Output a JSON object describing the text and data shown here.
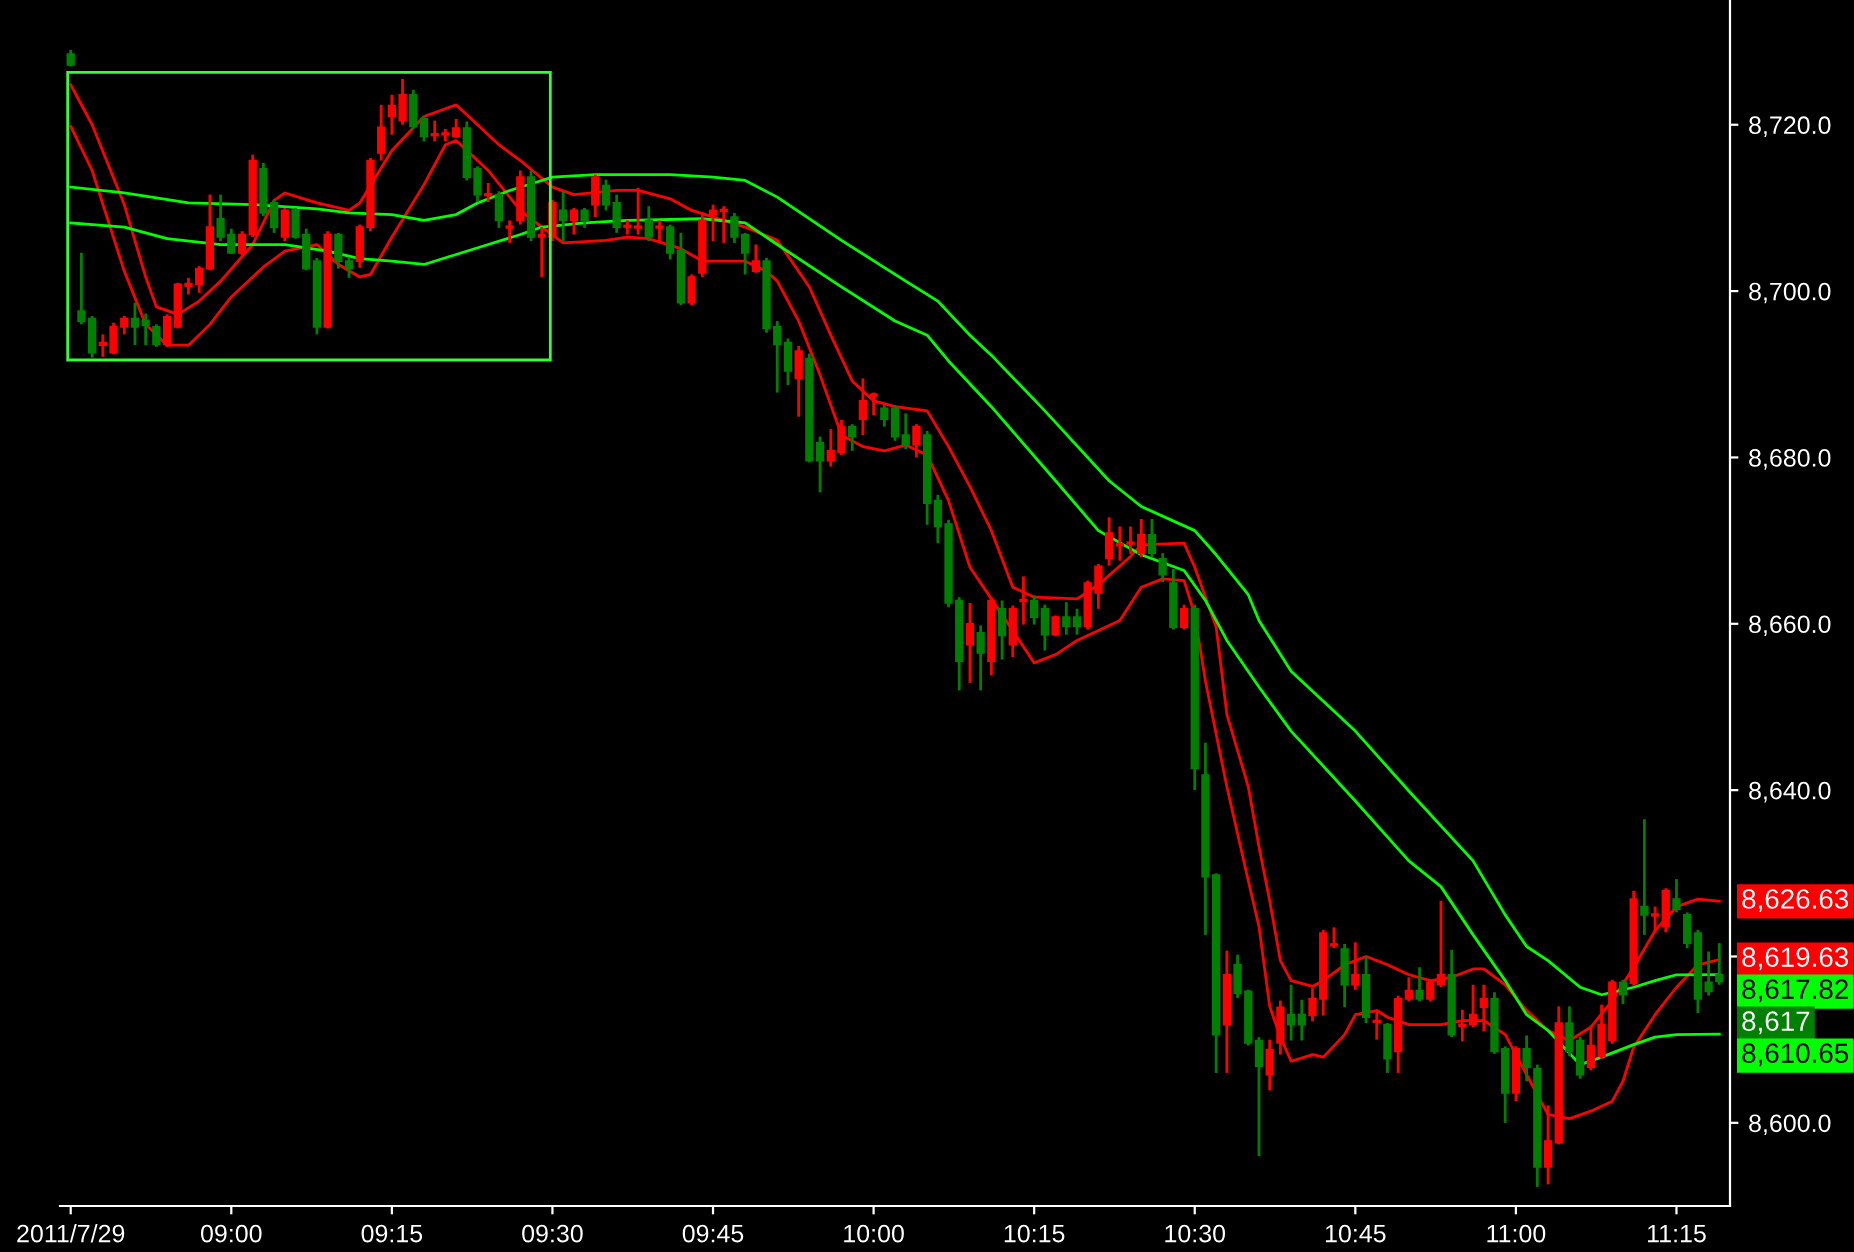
{
  "chart_data": {
    "type": "candlestick",
    "x": [
      "2011-07-29T08:45",
      "2011-07-29T08:46",
      "2011-07-29T08:47",
      "2011-07-29T08:48",
      "2011-07-29T08:49",
      "2011-07-29T08:50",
      "2011-07-29T08:51",
      "2011-07-29T08:52",
      "2011-07-29T08:53",
      "2011-07-29T08:54",
      "2011-07-29T08:55",
      "2011-07-29T08:56",
      "2011-07-29T08:57",
      "2011-07-29T08:58",
      "2011-07-29T08:59",
      "2011-07-29T09:00",
      "2011-07-29T09:01",
      "2011-07-29T09:02",
      "2011-07-29T09:03",
      "2011-07-29T09:04",
      "2011-07-29T09:05",
      "2011-07-29T09:06",
      "2011-07-29T09:07",
      "2011-07-29T09:08",
      "2011-07-29T09:09",
      "2011-07-29T09:10",
      "2011-07-29T09:11",
      "2011-07-29T09:12",
      "2011-07-29T09:13",
      "2011-07-29T09:14",
      "2011-07-29T09:15",
      "2011-07-29T09:16",
      "2011-07-29T09:17",
      "2011-07-29T09:18",
      "2011-07-29T09:19",
      "2011-07-29T09:20",
      "2011-07-29T09:21",
      "2011-07-29T09:22",
      "2011-07-29T09:23",
      "2011-07-29T09:24",
      "2011-07-29T09:25",
      "2011-07-29T09:26",
      "2011-07-29T09:27",
      "2011-07-29T09:28",
      "2011-07-29T09:29",
      "2011-07-29T09:30",
      "2011-07-29T09:31",
      "2011-07-29T09:32",
      "2011-07-29T09:33",
      "2011-07-29T09:34",
      "2011-07-29T09:35",
      "2011-07-29T09:36",
      "2011-07-29T09:37",
      "2011-07-29T09:38",
      "2011-07-29T09:39",
      "2011-07-29T09:40",
      "2011-07-29T09:41",
      "2011-07-29T09:42",
      "2011-07-29T09:43",
      "2011-07-29T09:44",
      "2011-07-29T09:45",
      "2011-07-29T09:46",
      "2011-07-29T09:47",
      "2011-07-29T09:48",
      "2011-07-29T09:49",
      "2011-07-29T09:50",
      "2011-07-29T09:51",
      "2011-07-29T09:52",
      "2011-07-29T09:53",
      "2011-07-29T09:54",
      "2011-07-29T09:55",
      "2011-07-29T09:56",
      "2011-07-29T09:57",
      "2011-07-29T09:58",
      "2011-07-29T09:59",
      "2011-07-29T10:00",
      "2011-07-29T10:01",
      "2011-07-29T10:02",
      "2011-07-29T10:03",
      "2011-07-29T10:04",
      "2011-07-29T10:05",
      "2011-07-29T10:06",
      "2011-07-29T10:07",
      "2011-07-29T10:08",
      "2011-07-29T10:09",
      "2011-07-29T10:10",
      "2011-07-29T10:11",
      "2011-07-29T10:12",
      "2011-07-29T10:13",
      "2011-07-29T10:14",
      "2011-07-29T10:15",
      "2011-07-29T10:16",
      "2011-07-29T10:17",
      "2011-07-29T10:18",
      "2011-07-29T10:19",
      "2011-07-29T10:20",
      "2011-07-29T10:21",
      "2011-07-29T10:22",
      "2011-07-29T10:23",
      "2011-07-29T10:24",
      "2011-07-29T10:25",
      "2011-07-29T10:26",
      "2011-07-29T10:27",
      "2011-07-29T10:28",
      "2011-07-29T10:29",
      "2011-07-29T10:30",
      "2011-07-29T10:31",
      "2011-07-29T10:32",
      "2011-07-29T10:33",
      "2011-07-29T10:34",
      "2011-07-29T10:35",
      "2011-07-29T10:36",
      "2011-07-29T10:37",
      "2011-07-29T10:38",
      "2011-07-29T10:39",
      "2011-07-29T10:40",
      "2011-07-29T10:41",
      "2011-07-29T10:42",
      "2011-07-29T10:43",
      "2011-07-29T10:44",
      "2011-07-29T10:45",
      "2011-07-29T10:46",
      "2011-07-29T10:47",
      "2011-07-29T10:48",
      "2011-07-29T10:49",
      "2011-07-29T10:50",
      "2011-07-29T10:51",
      "2011-07-29T10:52",
      "2011-07-29T10:53",
      "2011-07-29T10:54",
      "2011-07-29T10:55",
      "2011-07-29T10:56",
      "2011-07-29T10:57",
      "2011-07-29T10:58",
      "2011-07-29T10:59",
      "2011-07-29T11:00",
      "2011-07-29T11:01",
      "2011-07-29T11:02",
      "2011-07-29T11:03",
      "2011-07-29T11:04",
      "2011-07-29T11:05",
      "2011-07-29T11:06",
      "2011-07-29T11:07",
      "2011-07-29T11:08",
      "2011-07-29T11:09",
      "2011-07-29T11:10",
      "2011-07-29T11:11",
      "2011-07-29T11:12",
      "2011-07-29T11:13",
      "2011-07-29T11:14",
      "2011-07-29T11:15",
      "2011-07-29T11:16",
      "2011-07-29T11:17",
      "2011-07-29T11:18",
      "2011-07-29T11:19"
    ],
    "ohlc": [
      [
        8728.5,
        8729,
        8727,
        8727.2
      ],
      [
        8697.6,
        8704.6,
        8696,
        8696.4
      ],
      [
        8696.7,
        8697,
        8692,
        8692.6
      ],
      [
        8693.5,
        8694.8,
        8692.1,
        8693.8
      ],
      [
        8692.6,
        8696.2,
        8692.4,
        8695.7
      ],
      [
        8695.7,
        8697,
        8694.8,
        8696.7
      ],
      [
        8696.7,
        8698.6,
        8693.5,
        8695.7
      ],
      [
        8696.5,
        8697.3,
        8693.5,
        8695.9
      ],
      [
        8695.7,
        8696,
        8693.3,
        8693.6
      ],
      [
        8693.6,
        8697.2,
        8693.3,
        8696.9
      ],
      [
        8695.7,
        8701,
        8695.5,
        8700.8
      ],
      [
        8700.6,
        8701.6,
        8699.6,
        8700.9
      ],
      [
        8700.8,
        8703,
        8699.8,
        8702.7
      ],
      [
        8702.7,
        8711.6,
        8702.5,
        8707.7
      ],
      [
        8708.7,
        8711.6,
        8706,
        8706.5
      ],
      [
        8706.8,
        8707.5,
        8704.5,
        8704.6
      ],
      [
        8704.6,
        8707.2,
        8704.3,
        8706.8
      ],
      [
        8706.8,
        8716.4,
        8706.5,
        8715.7
      ],
      [
        8714.7,
        8715.4,
        8709,
        8709.4
      ],
      [
        8710.6,
        8711,
        8707,
        8707.7
      ],
      [
        8706.5,
        8710,
        8706,
        8709.7
      ],
      [
        8709.7,
        8710,
        8706.3,
        8706.5
      ],
      [
        8706.8,
        8707.5,
        8702.5,
        8702.7
      ],
      [
        8703.6,
        8704,
        8694.8,
        8695.7
      ],
      [
        8695.7,
        8707.2,
        8695.5,
        8706.8
      ],
      [
        8706.8,
        8707,
        8702.7,
        8703.6
      ],
      [
        8703.6,
        8704,
        8701.6,
        8702.7
      ],
      [
        8703.6,
        8708,
        8702.8,
        8707.7
      ],
      [
        8707.7,
        8716,
        8707.2,
        8715.7
      ],
      [
        8716.6,
        8722.4,
        8715.7,
        8719.7
      ],
      [
        8721,
        8723.6,
        8718.8,
        8722.3
      ],
      [
        8720.5,
        8725.5,
        8720,
        8723.6
      ],
      [
        8723.6,
        8724.2,
        8719.5,
        8719.8
      ],
      [
        8720.7,
        8721,
        8718,
        8718.6
      ],
      [
        8718.7,
        8720.5,
        8718,
        8718.9
      ],
      [
        8718.8,
        8719.5,
        8718,
        8719
      ],
      [
        8718.6,
        8720.7,
        8718.4,
        8719.6
      ],
      [
        8719.6,
        8720.4,
        8713.3,
        8713.7
      ],
      [
        8714.7,
        8715,
        8710.7,
        8711.6
      ],
      [
        8711.5,
        8713,
        8710.7,
        8711.7
      ],
      [
        8711.6,
        8712,
        8707.6,
        8708.5
      ],
      [
        8707.6,
        8708.5,
        8705.8,
        8707.8
      ],
      [
        8708.5,
        8714.5,
        8708,
        8713.7
      ],
      [
        8713.7,
        8714.5,
        8706,
        8706.5
      ],
      [
        8706.5,
        8707.7,
        8701.7,
        8706.8
      ],
      [
        8706.5,
        8711,
        8706,
        8710.6
      ],
      [
        8709.7,
        8712,
        8706,
        8708.5
      ],
      [
        8708.5,
        8710,
        8706.8,
        8709.7
      ],
      [
        8709.7,
        8710,
        8707.6,
        8708.5
      ],
      [
        8710.4,
        8714,
        8708.9,
        8713.7
      ],
      [
        8712.7,
        8713.4,
        8709.7,
        8710.4
      ],
      [
        8710.6,
        8711.6,
        8707,
        8707.7
      ],
      [
        8707.7,
        8708.5,
        8706.8,
        8707.9
      ],
      [
        8707.6,
        8712.4,
        8706.8,
        8707.8
      ],
      [
        8708.5,
        8710.2,
        8706,
        8706.5
      ],
      [
        8707.6,
        8708.5,
        8705.8,
        8707.8
      ],
      [
        8707.7,
        8708,
        8703.8,
        8704.6
      ],
      [
        8704.9,
        8707,
        8698.3,
        8698.6
      ],
      [
        8698.6,
        8702,
        8698.3,
        8701.7
      ],
      [
        8702.2,
        8709.5,
        8701.7,
        8708.5
      ],
      [
        8709.2,
        8710.4,
        8706,
        8709.7
      ],
      [
        8709.6,
        8710.2,
        8705.8,
        8709.8
      ],
      [
        8708.9,
        8709.4,
        8705.8,
        8706.5
      ],
      [
        8706.8,
        8707,
        8702,
        8704.6
      ],
      [
        8702.4,
        8705.6,
        8702.2,
        8703.6
      ],
      [
        8703.6,
        8704,
        8695,
        8695.5
      ],
      [
        8695.7,
        8696.4,
        8687.8,
        8693.6
      ],
      [
        8693.8,
        8694.3,
        8688.7,
        8690.4
      ],
      [
        8689.5,
        8693.4,
        8684.9,
        8692.8
      ],
      [
        8691.9,
        8692.5,
        8679.4,
        8679.6
      ],
      [
        8681.8,
        8682.5,
        8675.8,
        8679.6
      ],
      [
        8679.6,
        8683.4,
        8678.9,
        8680.8
      ],
      [
        8680.6,
        8684.5,
        8680.3,
        8683.7
      ],
      [
        8683.7,
        8684,
        8680.8,
        8682.5
      ],
      [
        8684.6,
        8689.5,
        8682.7,
        8686.8
      ],
      [
        8687.4,
        8687.8,
        8685.1,
        8687.6
      ],
      [
        8685.9,
        8686.3,
        8683.7,
        8684.6
      ],
      [
        8685.9,
        8686.3,
        8682,
        8682.5
      ],
      [
        8682.7,
        8685.3,
        8681,
        8681.5
      ],
      [
        8681.5,
        8684,
        8680,
        8683.7
      ],
      [
        8682.7,
        8683.2,
        8671.9,
        8674.5
      ],
      [
        8674.8,
        8675.5,
        8669.7,
        8671.7
      ],
      [
        8672,
        8672.5,
        8662,
        8662.5
      ],
      [
        8662.8,
        8663.2,
        8652,
        8655.5
      ],
      [
        8657.5,
        8662.5,
        8652.9,
        8660
      ],
      [
        8658.9,
        8659.8,
        8652,
        8656.5
      ],
      [
        8655.5,
        8663.2,
        8653.8,
        8662.8
      ],
      [
        8661.8,
        8662.8,
        8655.7,
        8658.6
      ],
      [
        8657.5,
        8662.2,
        8656,
        8661.8
      ],
      [
        8662.7,
        8665.7,
        8659.9,
        8662.9
      ],
      [
        8662.8,
        8663.4,
        8659.9,
        8660.8
      ],
      [
        8661.8,
        8662.3,
        8656.8,
        8658.7
      ],
      [
        8658.7,
        8661,
        8658.5,
        8660.8
      ],
      [
        8660.8,
        8662.6,
        8658.7,
        8659.7
      ],
      [
        8660.8,
        8661.8,
        8658.7,
        8659.7
      ],
      [
        8659.7,
        8665.2,
        8659.3,
        8664.9
      ],
      [
        8663.7,
        8667.2,
        8661.8,
        8666.9
      ],
      [
        8667.9,
        8672.8,
        8667,
        8670.9
      ],
      [
        8669.4,
        8671.7,
        8667.6,
        8669.6
      ],
      [
        8669.6,
        8671.7,
        8668.4,
        8669.8
      ],
      [
        8668.5,
        8672.6,
        8668,
        8670.7
      ],
      [
        8670.7,
        8672.6,
        8668,
        8668.5
      ],
      [
        8667.8,
        8668.5,
        8665,
        8665.9
      ],
      [
        8664.9,
        8666.6,
        8659.3,
        8659.6
      ],
      [
        8659.6,
        8662.3,
        8659.3,
        8661.8
      ],
      [
        8661.8,
        8662.3,
        8640,
        8642.6
      ],
      [
        8641.8,
        8645.7,
        8622.6,
        8629.6
      ],
      [
        8629.8,
        8630,
        8606,
        8610.6
      ],
      [
        8611.8,
        8620.7,
        8606,
        8617.8
      ],
      [
        8619,
        8620.2,
        8615,
        8615.6
      ],
      [
        8615.8,
        8616,
        8609.3,
        8609.6
      ],
      [
        8609.9,
        8610.3,
        8596,
        8606.8
      ],
      [
        8605.8,
        8610,
        8603.9,
        8608.8
      ],
      [
        8609.6,
        8614.7,
        8608.2,
        8613.9
      ],
      [
        8613,
        8616.6,
        8609.9,
        8611.8
      ],
      [
        8613,
        8614.8,
        8609.9,
        8611.8
      ],
      [
        8612.9,
        8616.2,
        8612.2,
        8614.9
      ],
      [
        8614.9,
        8623.2,
        8612.9,
        8622.8
      ],
      [
        8621.3,
        8623.5,
        8621,
        8621.5
      ],
      [
        8620.9,
        8621.5,
        8613.9,
        8616.6
      ],
      [
        8616.6,
        8621.7,
        8616,
        8617.8
      ],
      [
        8617.8,
        8620,
        8612,
        8612.7
      ],
      [
        8612.1,
        8613.5,
        8610,
        8612.3
      ],
      [
        8611.8,
        8612,
        8606,
        8607.7
      ],
      [
        8608.6,
        8615.3,
        8606,
        8614.9
      ],
      [
        8614.9,
        8617.5,
        8614.6,
        8615.9
      ],
      [
        8615.9,
        8618.7,
        8614.6,
        8614.9
      ],
      [
        8614.9,
        8617.2,
        8614.6,
        8616.9
      ],
      [
        8616.6,
        8626.7,
        8616.3,
        8617.8
      ],
      [
        8617.8,
        8620.8,
        8610.3,
        8610.6
      ],
      [
        8611.6,
        8613.6,
        8609.8,
        8611.8
      ],
      [
        8611.8,
        8616.6,
        8611.5,
        8613
      ],
      [
        8613.9,
        8616.6,
        8611,
        8614.9
      ],
      [
        8614.9,
        8615.7,
        8608.3,
        8608.6
      ],
      [
        8608.9,
        8609.2,
        8600,
        8603.6
      ],
      [
        8603.6,
        8609.2,
        8602.6,
        8608.9
      ],
      [
        8608.9,
        8610.5,
        8605,
        8606.7
      ],
      [
        8606.5,
        8607,
        8592.3,
        8594.7
      ],
      [
        8594.7,
        8602.1,
        8592.6,
        8597.8
      ],
      [
        8597.6,
        8614,
        8597.4,
        8612
      ],
      [
        8612,
        8614,
        8608,
        8608.6
      ],
      [
        8609.9,
        8610.3,
        8605.3,
        8605.8
      ],
      [
        8606.7,
        8611.7,
        8606.3,
        8609.3
      ],
      [
        8608,
        8614.2,
        8607.7,
        8611.8
      ],
      [
        8609.9,
        8617.2,
        8609.5,
        8616.9
      ],
      [
        8616.9,
        8617.2,
        8614.3,
        8615.4
      ],
      [
        8616.8,
        8627.9,
        8616.5,
        8626.9
      ],
      [
        8626,
        8636.5,
        8622.6,
        8625
      ],
      [
        8624.9,
        8626,
        8622.8,
        8625.1
      ],
      [
        8623.6,
        8628.2,
        8622.9,
        8627.9
      ],
      [
        8626.9,
        8629.3,
        8625.3,
        8625.7
      ],
      [
        8625,
        8625.3,
        8621,
        8621.6
      ],
      [
        8622.8,
        8623.2,
        8613.2,
        8614.9
      ],
      [
        8616.9,
        8620.6,
        8615.3,
        8615.8
      ],
      [
        8617.8,
        8621.6,
        8616.6,
        8617
      ]
    ],
    "colors": [
      "#008000",
      "#008000",
      "#008000",
      "#ff0000",
      "#ff0000",
      "#ff0000",
      "#008000",
      "#008000",
      "#008000",
      "#ff0000",
      "#ff0000",
      "#ff0000",
      "#ff0000",
      "#ff0000",
      "#008000",
      "#008000",
      "#ff0000",
      "#ff0000",
      "#008000",
      "#008000",
      "#ff0000",
      "#008000",
      "#008000",
      "#008000",
      "#ff0000",
      "#008000",
      "#008000",
      "#ff0000",
      "#ff0000",
      "#ff0000",
      "#ff0000",
      "#ff0000",
      "#008000",
      "#008000",
      "#ff0000",
      "#ff0000",
      "#ff0000",
      "#008000",
      "#008000",
      "#ff0000",
      "#008000",
      "#ff0000",
      "#ff0000",
      "#008000",
      "#ff0000",
      "#ff0000",
      "#008000",
      "#ff0000",
      "#008000",
      "#ff0000",
      "#008000",
      "#008000",
      "#ff0000",
      "#ff0000",
      "#008000",
      "#ff0000",
      "#008000",
      "#008000",
      "#ff0000",
      "#ff0000",
      "#ff0000",
      "#ff0000",
      "#008000",
      "#008000",
      "#ff0000",
      "#008000",
      "#008000",
      "#008000",
      "#ff0000",
      "#008000",
      "#008000",
      "#ff0000",
      "#ff0000",
      "#008000",
      "#ff0000",
      "#ff0000",
      "#008000",
      "#008000",
      "#008000",
      "#ff0000",
      "#008000",
      "#008000",
      "#008000",
      "#008000",
      "#ff0000",
      "#008000",
      "#ff0000",
      "#008000",
      "#ff0000",
      "#ff0000",
      "#008000",
      "#008000",
      "#ff0000",
      "#008000",
      "#008000",
      "#ff0000",
      "#ff0000",
      "#ff0000",
      "#ff0000",
      "#ff0000",
      "#ff0000",
      "#008000",
      "#008000",
      "#008000",
      "#ff0000",
      "#008000",
      "#008000",
      "#008000",
      "#ff0000",
      "#008000",
      "#008000",
      "#008000",
      "#ff0000",
      "#ff0000",
      "#008000",
      "#008000",
      "#ff0000",
      "#ff0000",
      "#ff0000",
      "#008000",
      "#ff0000",
      "#008000",
      "#ff0000",
      "#008000",
      "#ff0000",
      "#ff0000",
      "#008000",
      "#ff0000",
      "#ff0000",
      "#008000",
      "#ff0000",
      "#ff0000",
      "#ff0000",
      "#008000",
      "#008000",
      "#ff0000",
      "#008000",
      "#008000",
      "#ff0000",
      "#ff0000",
      "#008000",
      "#008000",
      "#ff0000",
      "#ff0000",
      "#ff0000",
      "#008000",
      "#ff0000",
      "#008000",
      "#ff0000",
      "#ff0000",
      "#008000",
      "#008000",
      "#008000",
      "#008000",
      "#008000"
    ],
    "series": [
      {
        "type": "line",
        "color": "#ff0000",
        "x": [
          "2011-07-29T08:45",
          "2011-07-29T08:47",
          "2011-07-29T08:50",
          "2011-07-29T08:52",
          "2011-07-29T08:53",
          "2011-07-29T08:55",
          "2011-07-29T08:57",
          "2011-07-29T08:59",
          "2011-07-29T09:02",
          "2011-07-29T09:04",
          "2011-07-29T09:05",
          "2011-07-29T09:08",
          "2011-07-29T09:11",
          "2011-07-29T09:12",
          "2011-07-29T09:15",
          "2011-07-29T09:18",
          "2011-07-29T09:21",
          "2011-07-29T09:22",
          "2011-07-29T09:25",
          "2011-07-29T09:27",
          "2011-07-29T09:30",
          "2011-07-29T09:32",
          "2011-07-29T09:36",
          "2011-07-29T09:38",
          "2011-07-29T09:41",
          "2011-07-29T09:43",
          "2011-07-29T09:48",
          "2011-07-29T09:51",
          "2011-07-29T09:54",
          "2011-07-29T09:56",
          "2011-07-29T09:58",
          "2011-07-29T10:00",
          "2011-07-29T10:02",
          "2011-07-29T10:05",
          "2011-07-29T10:07",
          "2011-07-29T10:09",
          "2011-07-29T10:11",
          "2011-07-29T10:13",
          "2011-07-29T10:15",
          "2011-07-29T10:19",
          "2011-07-29T10:21",
          "2011-07-29T10:24",
          "2011-07-29T10:25",
          "2011-07-29T10:29",
          "2011-07-29T10:30",
          "2011-07-29T10:32",
          "2011-07-29T10:33",
          "2011-07-29T10:35",
          "2011-07-29T10:36",
          "2011-07-29T10:37",
          "2011-07-29T10:38",
          "2011-07-29T10:39",
          "2011-07-29T10:41",
          "2011-07-29T10:42",
          "2011-07-29T10:44",
          "2011-07-29T10:46",
          "2011-07-29T10:48",
          "2011-07-29T10:50",
          "2011-07-29T10:52",
          "2011-07-29T10:54",
          "2011-07-29T10:56",
          "2011-07-29T10:57",
          "2011-07-29T10:59",
          "2011-07-29T11:01",
          "2011-07-29T11:03",
          "2011-07-29T11:05",
          "2011-07-29T11:07",
          "2011-07-29T11:09",
          "2011-07-29T11:11",
          "2011-07-29T11:13",
          "2011-07-29T11:15",
          "2011-07-29T11:17",
          "2011-07-29T11:19"
        ],
        "values": [
          8724.8,
          8720.0,
          8710.4,
          8701.7,
          8698.1,
          8697.2,
          8698.8,
          8701.2,
          8705.6,
          8710.9,
          8711.8,
          8710.6,
          8709.7,
          8710.6,
          8716.9,
          8721.0,
          8722.4,
          8721.2,
          8717.6,
          8715.7,
          8712.5,
          8711.6,
          8712.1,
          8712.1,
          8711.1,
          8709.7,
          8707.7,
          8706.1,
          8700.5,
          8694.7,
          8689.2,
          8686.8,
          8686.1,
          8685.6,
          8681.3,
          8676.5,
          8671.2,
          8664.4,
          8663.2,
          8663.0,
          8664.7,
          8668.1,
          8669.5,
          8669.7,
          8666.8,
          8659.6,
          8649.1,
          8640.4,
          8633.2,
          8626.7,
          8619.5,
          8617.1,
          8616.4,
          8617.1,
          8619.0,
          8620.0,
          8619.0,
          8617.8,
          8617.1,
          8617.5,
          8618.5,
          8618.5,
          8616.6,
          8613.5,
          8611.1,
          8609.9,
          8611.5,
          8614.7,
          8618.7,
          8623.1,
          8626.0,
          8626.9,
          8626.63
        ]
      },
      {
        "type": "line",
        "color": "#ff0000",
        "x": [
          "2011-07-29T08:45",
          "2011-07-29T08:47",
          "2011-07-29T08:50",
          "2011-07-29T08:52",
          "2011-07-29T08:54",
          "2011-07-29T08:56",
          "2011-07-29T08:58",
          "2011-07-29T09:00",
          "2011-07-29T09:03",
          "2011-07-29T09:05",
          "2011-07-29T09:08",
          "2011-07-29T09:10",
          "2011-07-29T09:12",
          "2011-07-29T09:13",
          "2011-07-29T09:15",
          "2011-07-29T09:18",
          "2011-07-29T09:20",
          "2011-07-29T09:21",
          "2011-07-29T09:24",
          "2011-07-29T09:27",
          "2011-07-29T09:29",
          "2011-07-29T09:31",
          "2011-07-29T09:35",
          "2011-07-29T09:37",
          "2011-07-29T09:39",
          "2011-07-29T09:42",
          "2011-07-29T09:44",
          "2011-07-29T09:48",
          "2011-07-29T09:50",
          "2011-07-29T09:51",
          "2011-07-29T09:53",
          "2011-07-29T09:55",
          "2011-07-29T09:57",
          "2011-07-29T09:59",
          "2011-07-29T10:01",
          "2011-07-29T10:03",
          "2011-07-29T10:05",
          "2011-07-29T10:07",
          "2011-07-29T10:09",
          "2011-07-29T10:12",
          "2011-07-29T10:15",
          "2011-07-29T10:17",
          "2011-07-29T10:19",
          "2011-07-29T10:23",
          "2011-07-29T10:25",
          "2011-07-29T10:27",
          "2011-07-29T10:29",
          "2011-07-29T10:30",
          "2011-07-29T10:31",
          "2011-07-29T10:33",
          "2011-07-29T10:35",
          "2011-07-29T10:36",
          "2011-07-29T10:37",
          "2011-07-29T10:38",
          "2011-07-29T10:39",
          "2011-07-29T10:41",
          "2011-07-29T10:42",
          "2011-07-29T10:44",
          "2011-07-29T10:45",
          "2011-07-29T10:47",
          "2011-07-29T10:48",
          "2011-07-29T10:50",
          "2011-07-29T10:53",
          "2011-07-29T10:55",
          "2011-07-29T10:57",
          "2011-07-29T10:59",
          "2011-07-29T11:00",
          "2011-07-29T11:02",
          "2011-07-29T11:03",
          "2011-07-29T11:05",
          "2011-07-29T11:07",
          "2011-07-29T11:09",
          "2011-07-29T11:10",
          "2011-07-29T11:11",
          "2011-07-29T11:13",
          "2011-07-29T11:15",
          "2011-07-29T11:17",
          "2011-07-29T11:19"
        ],
        "values": [
          8719.8,
          8714.5,
          8702.4,
          8696.0,
          8693.5,
          8693.5,
          8696.0,
          8699.3,
          8702.9,
          8704.8,
          8705.6,
          8703.2,
          8701.7,
          8702.0,
          8706.5,
          8712.8,
          8717.6,
          8718.1,
          8714.5,
          8709.7,
          8707.7,
          8705.8,
          8706.1,
          8706.5,
          8706.3,
          8705.1,
          8703.6,
          8703.6,
          8702.4,
          8701.2,
          8696.4,
          8689.9,
          8682.7,
          8681.3,
          8680.8,
          8681.5,
          8680.3,
          8674.8,
          8666.8,
          8661.1,
          8655.3,
          8656.3,
          8658.0,
          8660.4,
          8664.4,
          8665.4,
          8665.2,
          8661.1,
          8653.1,
          8640.4,
          8629.1,
          8623.6,
          8614.0,
          8610.3,
          8607.4,
          8608.2,
          8607.9,
          8610.6,
          8613.0,
          8613.5,
          8612.7,
          8611.8,
          8611.8,
          8612.3,
          8612.3,
          8610.6,
          8608.2,
          8603.4,
          8601.0,
          8600.5,
          8601.4,
          8602.6,
          8605.0,
          8609.1,
          8613.0,
          8616.3,
          8619.0,
          8619.63
        ]
      },
      {
        "type": "line",
        "color": "#00ff00",
        "x": [
          "2011-07-29T08:45",
          "2011-07-29T08:50",
          "2011-07-29T08:56",
          "2011-07-29T09:02",
          "2011-07-29T09:08",
          "2011-07-29T09:11",
          "2011-07-29T09:15",
          "2011-07-29T09:18",
          "2011-07-29T09:21",
          "2011-07-29T09:23",
          "2011-07-29T09:26",
          "2011-07-29T09:29",
          "2011-07-29T09:30",
          "2011-07-29T09:34",
          "2011-07-29T09:41",
          "2011-07-29T09:45",
          "2011-07-29T09:48",
          "2011-07-29T09:51",
          "2011-07-29T09:57",
          "2011-07-29T10:03",
          "2011-07-29T10:06",
          "2011-07-29T10:09",
          "2011-07-29T10:11",
          "2011-07-29T10:16",
          "2011-07-29T10:22",
          "2011-07-29T10:25",
          "2011-07-29T10:30",
          "2011-07-29T10:32",
          "2011-07-29T10:35",
          "2011-07-29T10:36",
          "2011-07-29T10:39",
          "2011-07-29T10:45",
          "2011-07-29T10:50",
          "2011-07-29T10:56",
          "2011-07-29T10:59",
          "2011-07-29T11:01",
          "2011-07-29T11:03",
          "2011-07-29T11:06",
          "2011-07-29T11:08",
          "2011-07-29T11:11",
          "2011-07-29T11:13",
          "2011-07-29T11:15",
          "2011-07-29T11:19"
        ],
        "values": [
          8712.5,
          8711.8,
          8710.6,
          8710.4,
          8709.9,
          8709.4,
          8709.2,
          8708.5,
          8709.2,
          8710.6,
          8712.1,
          8713.3,
          8713.7,
          8714.0,
          8714.0,
          8713.7,
          8713.3,
          8711.3,
          8706.1,
          8701.2,
          8698.8,
          8694.7,
          8692.3,
          8685.6,
          8677.2,
          8674.1,
          8671.2,
          8668.3,
          8663.5,
          8660.4,
          8654.3,
          8647.1,
          8639.9,
          8631.5,
          8625.0,
          8621.2,
          8619.5,
          8616.3,
          8615.4,
          8616.3,
          8617.1,
          8617.8,
          8617.82
        ]
      },
      {
        "type": "line",
        "color": "#00ff00",
        "x": [
          "2011-07-29T08:45",
          "2011-07-29T08:50",
          "2011-07-29T08:54",
          "2011-07-29T08:59",
          "2011-07-29T09:05",
          "2011-07-29T09:09",
          "2011-07-29T09:12",
          "2011-07-29T09:15",
          "2011-07-29T09:18",
          "2011-07-29T09:21",
          "2011-07-29T09:24",
          "2011-07-29T09:27",
          "2011-07-29T09:29",
          "2011-07-29T09:33",
          "2011-07-29T09:37",
          "2011-07-29T09:44",
          "2011-07-29T09:48",
          "2011-07-29T09:51",
          "2011-07-29T09:57",
          "2011-07-29T10:02",
          "2011-07-29T10:05",
          "2011-07-29T10:07",
          "2011-07-29T10:11",
          "2011-07-29T10:17",
          "2011-07-29T10:21",
          "2011-07-29T10:25",
          "2011-07-29T10:29",
          "2011-07-29T10:31",
          "2011-07-29T10:33",
          "2011-07-29T10:36",
          "2011-07-29T10:39",
          "2011-07-29T10:45",
          "2011-07-29T10:50",
          "2011-07-29T10:53",
          "2011-07-29T10:56",
          "2011-07-29T10:59",
          "2011-07-29T11:01",
          "2011-07-29T11:03",
          "2011-07-29T11:06",
          "2011-07-29T11:08",
          "2011-07-29T11:11",
          "2011-07-29T11:13",
          "2011-07-29T11:15",
          "2011-07-29T11:19"
        ],
        "values": [
          8708.2,
          8707.7,
          8706.3,
          8705.6,
          8705.6,
          8704.8,
          8703.9,
          8703.6,
          8703.2,
          8704.4,
          8705.6,
          8706.8,
          8707.7,
          8708.2,
          8708.5,
          8708.7,
          8708.2,
          8705.6,
          8700.5,
          8696.4,
          8694.7,
          8691.6,
          8686.1,
          8677.2,
          8671.2,
          8668.3,
          8666.4,
          8662.8,
          8658.0,
          8652.4,
          8647.1,
          8638.7,
          8631.5,
          8628.4,
          8622.6,
          8617.1,
          8613.0,
          8611.1,
          8607.0,
          8607.9,
          8609.4,
          8610.3,
          8610.6,
          8610.65
        ]
      }
    ],
    "annotations": [
      {
        "text": "8,626.63",
        "x": "2011-07-29T11:19",
        "y": 8626.63
      },
      {
        "text": "8,619.63",
        "x": "2011-07-29T11:19",
        "y": 8619.63
      },
      {
        "text": "8,617.82",
        "x": "2011-07-29T11:19",
        "y": 8617.82
      },
      {
        "text": "8,617",
        "x": "2011-07-29T11:19",
        "y": 8617
      },
      {
        "text": "8,610.65",
        "x": "2011-07-29T11:19",
        "y": 8610.65
      }
    ],
    "xlim": [
      "2011-07-29T08:44",
      "2011-07-29T11:20"
    ],
    "xticks": [
      {
        "value": "2011-07-29T08:45",
        "label": "2011/7/29"
      },
      {
        "value": "2011-07-29T09:00",
        "label": "09:00"
      },
      {
        "value": "2011-07-29T09:15",
        "label": "09:15"
      },
      {
        "value": "2011-07-29T09:30",
        "label": "09:30"
      },
      {
        "value": "2011-07-29T09:45",
        "label": "09:45"
      },
      {
        "value": "2011-07-29T10:00",
        "label": "10:00"
      },
      {
        "value": "2011-07-29T10:15",
        "label": "10:15"
      },
      {
        "value": "2011-07-29T10:30",
        "label": "10:30"
      },
      {
        "value": "2011-07-29T10:45",
        "label": "10:45"
      },
      {
        "value": "2011-07-29T11:00",
        "label": "11:00"
      },
      {
        "value": "2011-07-29T11:15",
        "label": "11:15"
      }
    ],
    "ylim": [
      8590,
      8735
    ],
    "yticks": [
      {
        "value": 8600,
        "label": "8,600.0"
      },
      {
        "value": 8620,
        "label": null
      },
      {
        "value": 8640,
        "label": "8,640.0"
      },
      {
        "value": 8660,
        "label": "8,660.0"
      },
      {
        "value": 8680,
        "label": "8,680.0"
      },
      {
        "value": 8700,
        "label": "8,700.0"
      },
      {
        "value": 8720,
        "label": "8,720.0"
      }
    ]
  }
}
